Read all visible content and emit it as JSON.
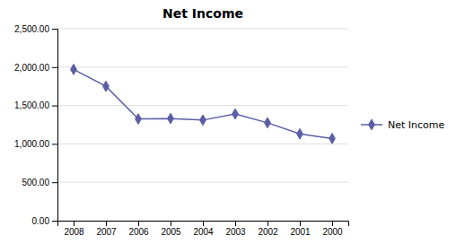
{
  "chart_data": {
    "type": "line",
    "title": "Net Income",
    "categories": [
      "2008",
      "2007",
      "2006",
      "2005",
      "2004",
      "2003",
      "2002",
      "2001",
      "2000"
    ],
    "series": [
      {
        "name": "Net Income",
        "color": "#5B5EA6",
        "marker": "diamond",
        "values": [
          1970,
          1750,
          1325,
          1330,
          1310,
          1390,
          1275,
          1130,
          1070
        ]
      }
    ],
    "ylim": [
      0,
      2500
    ],
    "yticks": [
      {
        "value": 0,
        "label": "0.00"
      },
      {
        "value": 500,
        "label": "500.00"
      },
      {
        "value": 1000,
        "label": "1,000.00"
      },
      {
        "value": 1500,
        "label": "1,500.00"
      },
      {
        "value": 2000,
        "label": "2,000.00"
      },
      {
        "value": 2500,
        "label": "2,500.00"
      }
    ],
    "grid": true,
    "legend": "right"
  }
}
